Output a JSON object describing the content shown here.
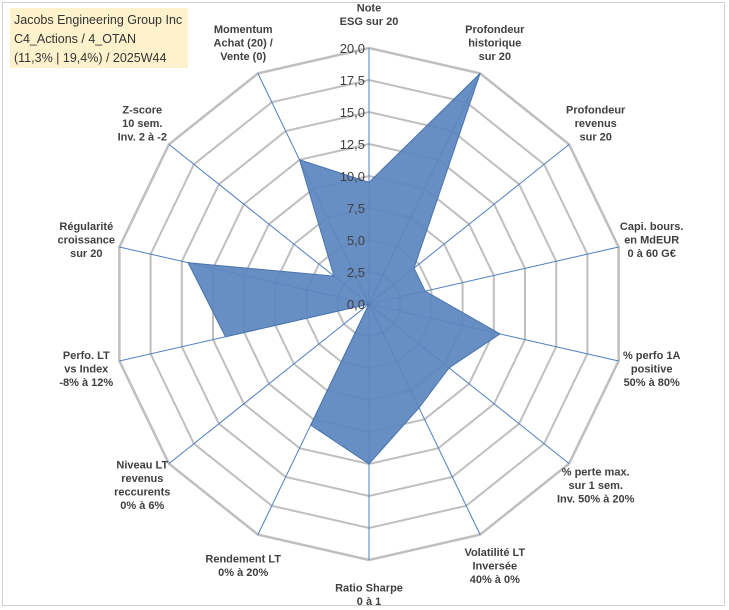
{
  "title_lines": [
    "Jacobs Engineering Group Inc",
    "C4_Actions / 4_OTAN",
    "(11,3% | 19,4%) / 2025W44"
  ],
  "colors": {
    "series_fill": "#5b86bf",
    "series_stroke": "#4a74ad",
    "grid": "#bfbfbf",
    "spoke": "#4f7fc0",
    "title_bg": "#fdf2cc"
  },
  "chart_data": {
    "type": "radar",
    "title": "",
    "rmax": 20,
    "ticks": [
      "0,0",
      "2,5",
      "5,0",
      "7,5",
      "10,0",
      "12,5",
      "15,0",
      "17,5",
      "20,0"
    ],
    "tick_values": [
      0,
      2.5,
      5,
      7.5,
      10,
      12.5,
      15,
      17.5,
      20
    ],
    "axes": [
      {
        "label": [
          "Note",
          "ESG sur 20"
        ],
        "value": 9.5
      },
      {
        "label": [
          "Profondeur",
          "historique",
          "sur 20"
        ],
        "value": 20
      },
      {
        "label": [
          "Profondeur",
          "revenus",
          "sur 20"
        ],
        "value": 4.5
      },
      {
        "label": [
          "Capi. bours.",
          "en MdEUR",
          "0 à 60 G€"
        ],
        "value": 4.5
      },
      {
        "label": [
          "% perfo 1A",
          "positive",
          "50% à 80%"
        ],
        "value": 10.5
      },
      {
        "label": [
          "% perte max.",
          "sur 1 sem.",
          "Inv. 50% à 20%"
        ],
        "value": 8.0
      },
      {
        "label": [
          "Volatilité LT",
          "Inversée",
          "40% à 0%"
        ],
        "value": 9.0
      },
      {
        "label": [
          "Ratio Sharpe",
          "0 à 1"
        ],
        "value": 12.5
      },
      {
        "label": [
          "Rendement LT",
          "0% à 20%"
        ],
        "value": 10.5
      },
      {
        "label": [
          "Niveau LT",
          "revenus",
          "reccurents",
          "0% à 6%"
        ],
        "value": 0
      },
      {
        "label": [
          "Perfo. LT",
          "vs Index",
          "-8% à 12%"
        ],
        "value": 11.5
      },
      {
        "label": [
          "Régularité",
          "croissance",
          "sur 20"
        ],
        "value": 14.5
      },
      {
        "label": [
          "Z-score",
          "10 sem.",
          "Inv. 2 à -2"
        ],
        "value": 3.5
      },
      {
        "label": [
          "Momentum",
          "Achat (20) /",
          "Vente (0)"
        ],
        "value": 12.5
      }
    ]
  }
}
